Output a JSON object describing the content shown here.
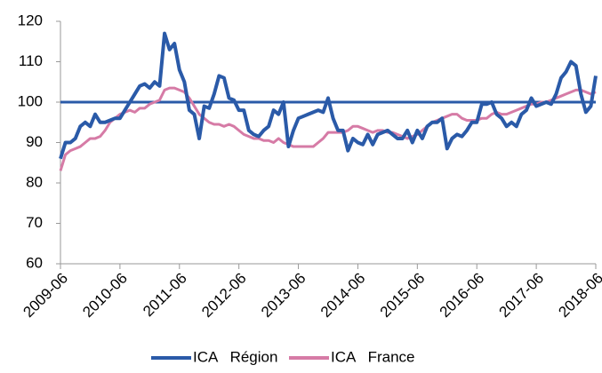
{
  "chart_data": {
    "type": "line",
    "categories": [
      "2009-06",
      null,
      null,
      null,
      null,
      null,
      null,
      null,
      null,
      null,
      null,
      null,
      "2010-06",
      null,
      null,
      null,
      null,
      null,
      null,
      null,
      null,
      null,
      null,
      null,
      "2011-06",
      null,
      null,
      null,
      null,
      null,
      null,
      null,
      null,
      null,
      null,
      null,
      "2012-06",
      null,
      null,
      null,
      null,
      null,
      null,
      null,
      null,
      null,
      null,
      null,
      "2013-06",
      null,
      null,
      null,
      null,
      null,
      null,
      null,
      null,
      null,
      null,
      null,
      "2014-06",
      null,
      null,
      null,
      null,
      null,
      null,
      null,
      null,
      null,
      null,
      null,
      "2015-06",
      null,
      null,
      null,
      null,
      null,
      null,
      null,
      null,
      null,
      null,
      null,
      "2016-06",
      null,
      null,
      null,
      null,
      null,
      null,
      null,
      null,
      null,
      null,
      null,
      "2017-06",
      null,
      null,
      null,
      null,
      null,
      null,
      null,
      null,
      null,
      null,
      null,
      "2018-06"
    ],
    "series": [
      {
        "name": "ICA   Région",
        "color": "#2a5aa8",
        "values": [
          86,
          90,
          90,
          91,
          94,
          95,
          94,
          97,
          95,
          95,
          95.5,
          96,
          96,
          98,
          100,
          102,
          104,
          104.5,
          103.5,
          105,
          104,
          117,
          113,
          114.5,
          108,
          105,
          98,
          97,
          91,
          99,
          98.5,
          102,
          106.5,
          106,
          101,
          100.5,
          98,
          98,
          93,
          92,
          91.5,
          93,
          94,
          98,
          97,
          100,
          89,
          93,
          96,
          96.5,
          97,
          97.5,
          98,
          97.5,
          101,
          96,
          93,
          93,
          88,
          91,
          90,
          89.5,
          92,
          89.5,
          92,
          92.5,
          93,
          92,
          91,
          91,
          93,
          90,
          93,
          91,
          94,
          95,
          95,
          96,
          88.5,
          91,
          92,
          91.5,
          93,
          95,
          95,
          99.5,
          99.5,
          100,
          97,
          96,
          94,
          95,
          94,
          97,
          98,
          101,
          99,
          99.5,
          100,
          99.5,
          102,
          106,
          107.5,
          110,
          109,
          102,
          97.5,
          99,
          106.5
        ]
      },
      {
        "name": "ICA   France",
        "color": "#d67ba6",
        "values": [
          83,
          87,
          88,
          88.5,
          89,
          90,
          91,
          91,
          91.5,
          93,
          95,
          96,
          97,
          97.5,
          98,
          97.5,
          98.5,
          98.5,
          99.5,
          100,
          100.5,
          103,
          103.5,
          103.5,
          103,
          102.5,
          101,
          99,
          97,
          96,
          95,
          94.5,
          94.5,
          94,
          94.5,
          94,
          93,
          92,
          91.5,
          91,
          91,
          90.5,
          90.5,
          90,
          91,
          90,
          89.5,
          89,
          89,
          89,
          89,
          89,
          90,
          91,
          92.5,
          92.5,
          92.5,
          92.5,
          93,
          94,
          94,
          93.5,
          93,
          92.5,
          93,
          93,
          92.5,
          92.5,
          92,
          91.5,
          91,
          91.5,
          92,
          93,
          94,
          95,
          95.5,
          96,
          96.5,
          97,
          97,
          96,
          95.5,
          95.5,
          95.5,
          96,
          96,
          97,
          97.5,
          97,
          97,
          97.5,
          98,
          98.5,
          99,
          99.5,
          99.5,
          100,
          100,
          100.5,
          101,
          101.5,
          102,
          102.5,
          103,
          103,
          102.5,
          102,
          102.5
        ]
      }
    ],
    "reference_line": 100,
    "reference_color": "#2a5aa8",
    "ylim": [
      60,
      120
    ],
    "yticks": [
      60,
      70,
      80,
      90,
      100,
      110,
      120
    ],
    "grid": false,
    "legend": "bottom"
  }
}
